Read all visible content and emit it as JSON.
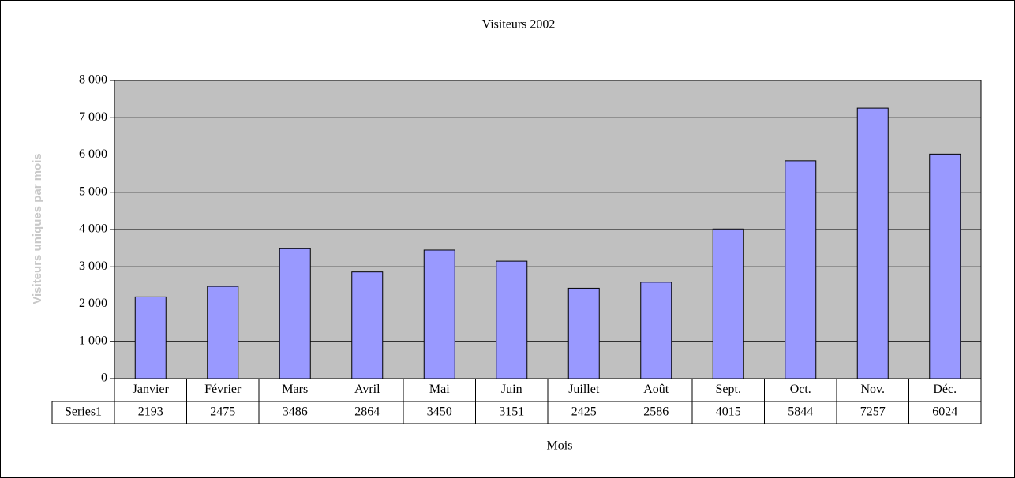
{
  "chart_data": {
    "type": "bar",
    "title": "Visiteurs 2002",
    "x_label": "Mois",
    "y_label": "Visiteurs uniques par mois",
    "categories": [
      "Janvier",
      "Février",
      "Mars",
      "Avril",
      "Mai",
      "Juin",
      "Juillet",
      "Août",
      "Sept.",
      "Oct.",
      "Nov.",
      "Déc."
    ],
    "series": [
      {
        "name": "Series1",
        "color": "#9999ff",
        "values": [
          2193,
          2475,
          3486,
          2864,
          3450,
          3151,
          2425,
          2586,
          4015,
          5844,
          7257,
          6024
        ]
      }
    ],
    "ylim": [
      0,
      8000
    ],
    "yticks": [
      0,
      {
        "value": 1000,
        "label": "1 000"
      },
      {
        "value": 2000,
        "label": "2 000"
      },
      {
        "value": 3000,
        "label": "3 000"
      },
      {
        "value": 4000,
        "label": "4 000"
      },
      {
        "value": 5000,
        "label": "5 000"
      },
      {
        "value": 6000,
        "label": "6 000"
      },
      {
        "value": 7000,
        "label": "7 000"
      },
      {
        "value": 8000,
        "label": "8 000"
      }
    ],
    "grid": true,
    "plot_background": "#c0c0c0",
    "data_table": true
  }
}
